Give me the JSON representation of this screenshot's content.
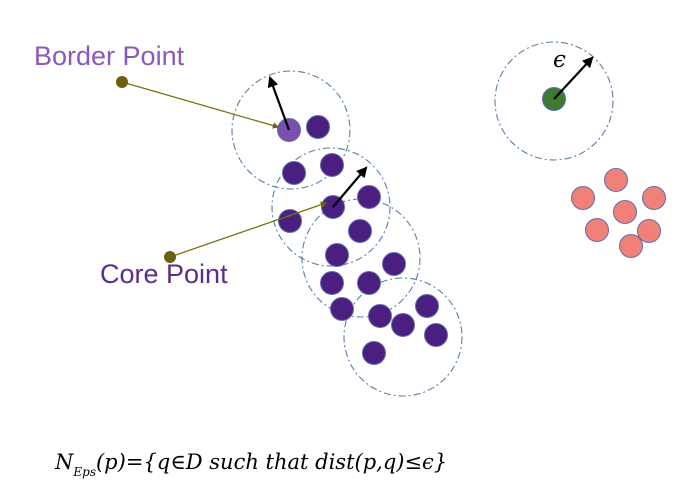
{
  "labels": {
    "border_point": "Border Point",
    "core_point": "Core Point",
    "epsilon": "ϵ"
  },
  "formula": {
    "n": "N",
    "sub": "Eps",
    "rest": "(p)={q∈D such that dist(p,q)≤ϵ}"
  },
  "colors": {
    "cluster_point": "#4b1f7f",
    "border_point": "#7a4fb0",
    "noise_point": "#f08078",
    "isolated_point": "#3e7a30",
    "circle_stroke": "#5a7fa8",
    "pointer_line": "#7a7010",
    "pointer_dot": "#6b6010"
  },
  "icons": {
    "label_pointer": "arrow-icon",
    "radius": "arrow-icon"
  }
}
